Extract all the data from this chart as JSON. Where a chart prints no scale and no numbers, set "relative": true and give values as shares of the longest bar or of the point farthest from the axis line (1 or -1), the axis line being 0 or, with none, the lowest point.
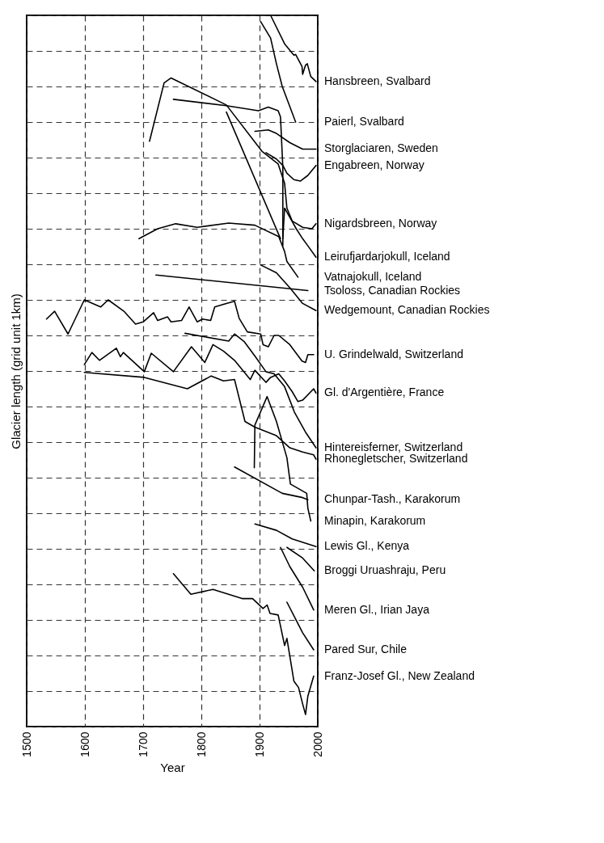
{
  "chart_data": {
    "type": "line",
    "xlabel": "Year",
    "ylabel": "Glacier length (grid unit 1km)",
    "xlim": [
      1500,
      2000
    ],
    "xticks": [
      1500,
      1600,
      1700,
      1800,
      1900,
      2000
    ],
    "relative": true,
    "grid": true,
    "series": [
      {
        "name": "Hansbreen, Svalbard",
        "color": "#000000",
        "x": [
          1919,
          1943,
          1959,
          1962,
          1973,
          1974,
          1979,
          1982,
          1988,
          1997
        ],
        "values": [
          1,
          0.96,
          0.944,
          0.945,
          0.928,
          0.917,
          0.93,
          0.932,
          0.914,
          0.907
        ]
      },
      {
        "name": "Paierl, Svalbard",
        "color": "#000000",
        "x": [
          1902,
          1919,
          1929,
          1939,
          1962
        ],
        "values": [
          0.991,
          0.968,
          0.932,
          0.9,
          0.85
        ]
      },
      {
        "name": "Storglaciaren, Sweden",
        "color": "#000000",
        "x": [
          1892,
          1915,
          1929,
          1952,
          1974,
          1997
        ],
        "values": [
          0.837,
          0.839,
          0.834,
          0.821,
          0.812,
          0.812
        ]
      },
      {
        "name": "Engabreen, Norway",
        "color": "#000000",
        "x": [
          1911,
          1929,
          1940,
          1947,
          1959,
          1970,
          1983,
          1997
        ],
        "values": [
          0.807,
          0.798,
          0.789,
          0.778,
          0.769,
          0.767,
          0.775,
          0.789
        ]
      },
      {
        "name": "Nigardsbreen, Norway",
        "color": "#000000",
        "x": [
          1711,
          1736,
          1748,
          1843,
          1904,
          1932,
          1943,
          1947,
          1956,
          1974,
          1990,
          1997
        ],
        "values": [
          0.823,
          0.905,
          0.912,
          0.874,
          0.809,
          0.791,
          0.764,
          0.729,
          0.711,
          0.702,
          0.7,
          0.707
        ]
      },
      {
        "color": "#000000",
        "x": [
          1752,
          1843,
          1898,
          1915,
          1932,
          1936,
          1940,
          1940
        ],
        "values": [
          0.882,
          0.873,
          0.866,
          0.871,
          0.866,
          0.857,
          0.786,
          0.676
        ]
      },
      {
        "color": "#000000",
        "x": [
          1843,
          1936
        ],
        "values": [
          0.864,
          0.686
        ]
      },
      {
        "name": "Leirufjardarjokull, Iceland",
        "color": "#000000",
        "x": [
          1940,
          1943,
          1952,
          1963,
          1974,
          1983,
          1997
        ],
        "values": [
          0.686,
          0.729,
          0.716,
          0.7,
          0.686,
          0.676,
          0.66
        ]
      },
      {
        "name": "Vatnajokull, Iceland",
        "color": "#000000",
        "x": [
          1693,
          1725,
          1756,
          1793,
          1847,
          1892,
          1933,
          1943,
          1947,
          1966
        ],
        "values": [
          0.686,
          0.7,
          0.707,
          0.702,
          0.708,
          0.705,
          0.689,
          0.668,
          0.654,
          0.632
        ]
      },
      {
        "name": "Tsoloss, Canadian Rockies",
        "color": "#000000",
        "x": [
          1722,
          1983
        ],
        "values": [
          0.635,
          0.613
        ]
      },
      {
        "name": "Wedgemount, Canadian Rockies",
        "color": "#000000",
        "x": [
          1902,
          1929,
          1952,
          1974,
          1997
        ],
        "values": [
          0.649,
          0.638,
          0.617,
          0.595,
          0.585
        ]
      },
      {
        "name": "U. Grindelwald, Switzerland",
        "color": "#000000",
        "x": [
          1534,
          1548,
          1571,
          1599,
          1627,
          1640,
          1667,
          1687,
          1700,
          1718,
          1725,
          1742,
          1748,
          1766,
          1779,
          1793,
          1802,
          1816,
          1823,
          1843,
          1857,
          1865,
          1879,
          1902,
          1906,
          1915,
          1925,
          1933,
          1952,
          1973,
          1979,
          1983,
          1993
        ],
        "values": [
          0.573,
          0.584,
          0.552,
          0.6,
          0.59,
          0.6,
          0.584,
          0.566,
          0.569,
          0.582,
          0.571,
          0.576,
          0.569,
          0.571,
          0.59,
          0.569,
          0.573,
          0.571,
          0.59,
          0.595,
          0.598,
          0.574,
          0.555,
          0.552,
          0.537,
          0.534,
          0.55,
          0.55,
          0.537,
          0.514,
          0.512,
          0.523,
          0.523
        ]
      },
      {
        "name": "Gl. d'Argentière, France",
        "color": "#000000",
        "x": [
          1599,
          1612,
          1625,
          1654,
          1661,
          1666,
          1702,
          1714,
          1752,
          1783,
          1806,
          1820,
          1838,
          1857,
          1884,
          1892,
          1911,
          1919,
          1933,
          1943,
          1956,
          1966,
          1974,
          1993,
          1997
        ],
        "values": [
          0.509,
          0.526,
          0.515,
          0.532,
          0.52,
          0.526,
          0.499,
          0.525,
          0.499,
          0.534,
          0.512,
          0.537,
          0.528,
          0.515,
          0.488,
          0.501,
          0.484,
          0.491,
          0.496,
          0.486,
          0.471,
          0.457,
          0.459,
          0.475,
          0.469
        ]
      },
      {
        "name": "Hintereisferner, Switzerland",
        "color": "#000000",
        "x": [
          1772,
          1847,
          1857,
          1874,
          1892,
          1911,
          1925,
          1943,
          1960,
          1979,
          1997
        ],
        "values": [
          0.553,
          0.542,
          0.552,
          0.541,
          0.521,
          0.499,
          0.496,
          0.478,
          0.442,
          0.414,
          0.392
        ]
      },
      {
        "name": "Rhonegletscher, Switzerland",
        "color": "#000000",
        "x": [
          1599,
          1702,
          1776,
          1817,
          1838,
          1857,
          1875,
          1892,
          1929,
          1952,
          1974,
          1993,
          1997
        ],
        "values": [
          0.498,
          0.491,
          0.475,
          0.493,
          0.486,
          0.488,
          0.429,
          0.421,
          0.409,
          0.392,
          0.386,
          0.382,
          0.376
        ]
      },
      {
        "name": "Chunpar-Tash., Karakorum",
        "color": "#000000",
        "x": [
          1857,
          1939,
          1974,
          1983
        ],
        "values": [
          0.365,
          0.328,
          0.322,
          0.319
        ]
      },
      {
        "name": "Minapin, Karakorum",
        "color": "#000000",
        "x": [
          1891,
          1892,
          1913,
          1929,
          1947,
          1953,
          1981,
          1983,
          1988
        ],
        "values": [
          0.364,
          0.424,
          0.464,
          0.429,
          0.378,
          0.341,
          0.328,
          0.307,
          0.289
        ]
      },
      {
        "name": "Lewis Gl., Kenya",
        "color": "#000000",
        "x": [
          1892,
          1929,
          1956,
          1997
        ],
        "values": [
          0.285,
          0.276,
          0.264,
          0.253
        ]
      },
      {
        "name": "Broggi Uruashraju, Peru",
        "color": "#000000",
        "x": [
          1947,
          1974,
          1994
        ],
        "values": [
          0.252,
          0.237,
          0.219
        ]
      },
      {
        "name": "Meren Gl., Irian Jaya",
        "color": "#000000",
        "x": [
          1936,
          1952,
          1974,
          1993
        ],
        "values": [
          0.252,
          0.225,
          0.196,
          0.164
        ]
      },
      {
        "name": "Pared Sur, Chile",
        "color": "#000000",
        "x": [
          1947,
          1974,
          1993
        ],
        "values": [
          0.175,
          0.132,
          0.108
        ]
      },
      {
        "name": "Franz-Josef Gl., New Zealand",
        "color": "#000000",
        "x": [
          1752,
          1782,
          1820,
          1870,
          1888,
          1906,
          1913,
          1918,
          1932,
          1943,
          1947,
          1959,
          1967,
          1974,
          1979,
          1983,
          1993
        ],
        "values": [
          0.215,
          0.186,
          0.193,
          0.18,
          0.18,
          0.166,
          0.171,
          0.159,
          0.157,
          0.114,
          0.124,
          0.064,
          0.055,
          0.032,
          0.017,
          0.043,
          0.071
        ]
      }
    ]
  }
}
